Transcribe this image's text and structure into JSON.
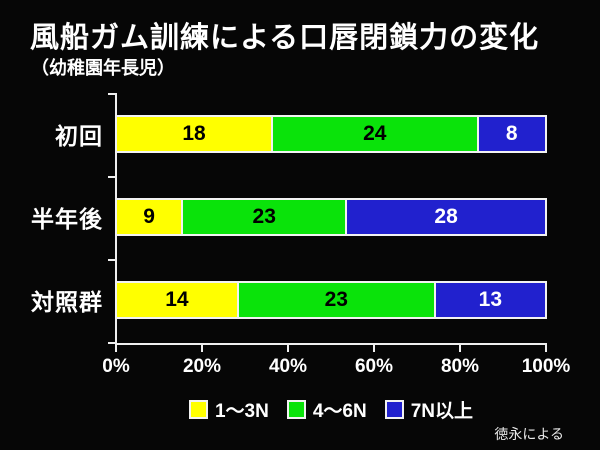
{
  "title": "風船ガム訓練による口唇閉鎖力の変化",
  "subtitle": "（幼稚園年長児）",
  "credit": "徳永による",
  "colors": {
    "background": "#060606",
    "axis": "#efefef",
    "text": "#ffffff",
    "series_yellow": "#ffff00",
    "series_green": "#0ae30a",
    "series_blue": "#2121ce"
  },
  "chart_data": {
    "type": "bar",
    "variant": "horizontal-stacked-percent",
    "title": "風船ガム訓練による口唇閉鎖力の変化",
    "subtitle": "（幼稚園年長児）",
    "categories": [
      "初回",
      "半年後",
      "対照群"
    ],
    "series": [
      {
        "name": "1〜3N",
        "color": "#ffff00",
        "label_color": "#000000",
        "values": [
          18,
          9,
          14
        ]
      },
      {
        "name": "4〜6N",
        "color": "#0ae30a",
        "label_color": "#000000",
        "values": [
          24,
          23,
          23
        ]
      },
      {
        "name": "7N以上",
        "color": "#2121ce",
        "label_color": "#ffffff",
        "values": [
          8,
          28,
          13
        ]
      }
    ],
    "x_ticks": [
      "0%",
      "20%",
      "40%",
      "60%",
      "80%",
      "100%"
    ],
    "xlim": [
      0,
      100
    ],
    "grid": false,
    "legend_position": "bottom",
    "annotation": "徳永による"
  }
}
